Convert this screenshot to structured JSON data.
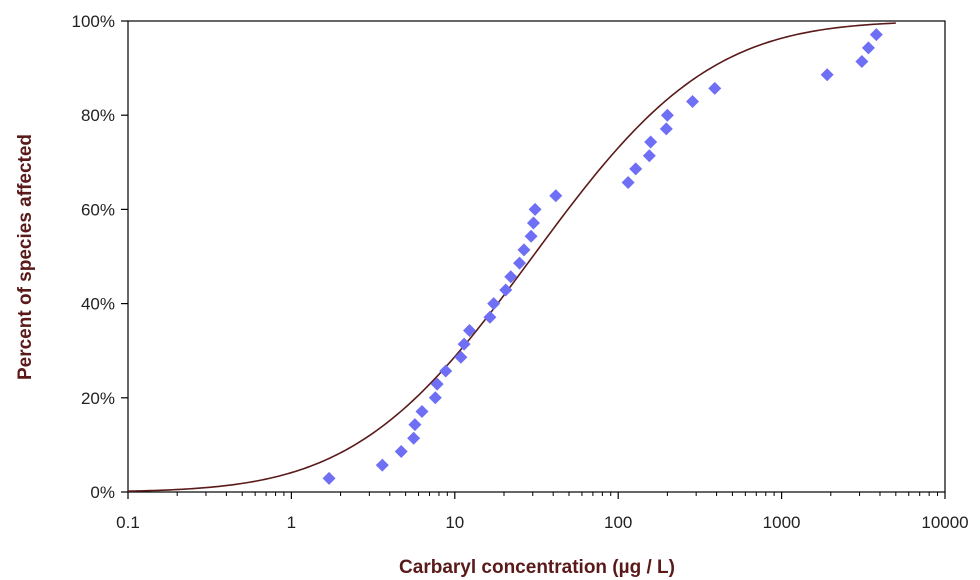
{
  "chart_data": {
    "type": "scatter",
    "title": "",
    "xlabel": "Carbaryl concentration (µg / L)",
    "ylabel": "Percent of species affected",
    "x_scale": "log",
    "xlim": [
      0.1,
      10000
    ],
    "ylim": [
      0,
      100
    ],
    "x_ticks": [
      {
        "value": 0.1,
        "label": "0.1"
      },
      {
        "value": 1,
        "label": "1"
      },
      {
        "value": 10,
        "label": "10"
      },
      {
        "value": 100,
        "label": "100"
      },
      {
        "value": 1000,
        "label": "1000"
      },
      {
        "value": 10000,
        "label": "10000"
      }
    ],
    "y_ticks": [
      {
        "value": 0,
        "label": "0%"
      },
      {
        "value": 20,
        "label": "20%"
      },
      {
        "value": 40,
        "label": "40%"
      },
      {
        "value": 60,
        "label": "60%"
      },
      {
        "value": 80,
        "label": "80%"
      },
      {
        "value": 100,
        "label": "100%"
      }
    ],
    "grid": false,
    "legend": "none",
    "series": [
      {
        "kind": "points",
        "marker": "diamond",
        "color": "#6f6ff5",
        "points": [
          [
            1.7,
            2.9
          ],
          [
            3.6,
            5.7
          ],
          [
            4.7,
            8.6
          ],
          [
            5.6,
            11.4
          ],
          [
            5.7,
            14.3
          ],
          [
            6.3,
            17.1
          ],
          [
            7.6,
            20.0
          ],
          [
            7.8,
            22.9
          ],
          [
            8.8,
            25.7
          ],
          [
            10.9,
            28.6
          ],
          [
            11.4,
            31.4
          ],
          [
            12.3,
            34.3
          ],
          [
            16.4,
            37.1
          ],
          [
            17.3,
            40.0
          ],
          [
            20.5,
            42.9
          ],
          [
            22.0,
            45.7
          ],
          [
            24.9,
            48.6
          ],
          [
            26.5,
            51.4
          ],
          [
            29.3,
            54.3
          ],
          [
            30.3,
            57.1
          ],
          [
            31.0,
            60.0
          ],
          [
            41.5,
            62.9
          ],
          [
            115,
            65.7
          ],
          [
            128,
            68.6
          ],
          [
            155,
            71.4
          ],
          [
            158,
            74.3
          ],
          [
            197,
            77.1
          ],
          [
            200,
            80.0
          ],
          [
            285,
            82.9
          ],
          [
            390,
            85.7
          ],
          [
            1900,
            88.6
          ],
          [
            3100,
            91.4
          ],
          [
            3400,
            94.3
          ],
          [
            3800,
            97.1
          ]
        ]
      },
      {
        "kind": "fitted-curve",
        "distribution": "log-normal",
        "median": 30,
        "log10_sd": 0.85,
        "x_range": [
          0.1,
          5000
        ],
        "color": "#5a1a1a"
      }
    ]
  }
}
